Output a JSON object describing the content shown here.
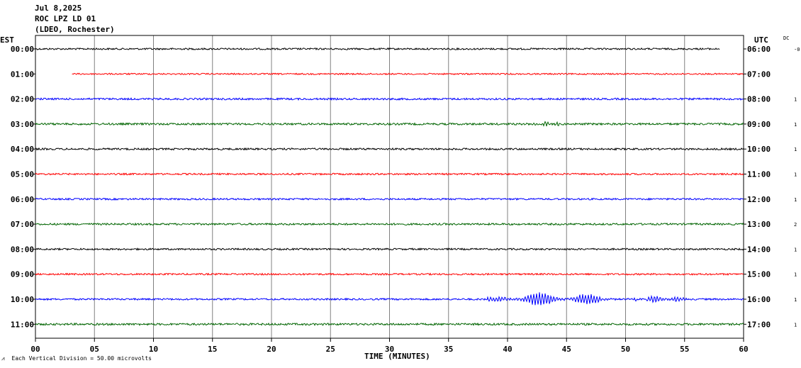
{
  "header": {
    "date": "Jul 8,2025",
    "station": "ROC LPZ LD 01",
    "network": "(LDEO, Rochester)"
  },
  "axis": {
    "left_title": "EST",
    "right_title": "UTC",
    "dc_title": "DC",
    "x_title": "TIME (MINUTES)",
    "footer_note": "Each Vertical Division =   50.00 microvolts"
  },
  "chart_data": {
    "type": "line",
    "title": "",
    "xlabel": "TIME (MINUTES)",
    "ylabel": "",
    "xlim": [
      0,
      60
    ],
    "x_ticks": [
      "00",
      "05",
      "10",
      "15",
      "20",
      "25",
      "30",
      "35",
      "40",
      "45",
      "50",
      "55",
      "60"
    ],
    "grid": true,
    "traces": [
      {
        "est": "00:00",
        "utc": "06:00",
        "dc": "-0",
        "color": "#000000",
        "start_min": 0,
        "end_min": 58,
        "amplitude": 1.2,
        "events": []
      },
      {
        "est": "01:00",
        "utc": "07:00",
        "dc": "",
        "color": "#ff0000",
        "start_min": 3.1,
        "end_min": 60,
        "amplitude": 1.0,
        "events": []
      },
      {
        "est": "02:00",
        "utc": "08:00",
        "dc": "1",
        "color": "#0000ff",
        "start_min": 0,
        "end_min": 60,
        "amplitude": 1.3,
        "events": []
      },
      {
        "est": "03:00",
        "utc": "09:00",
        "dc": "1",
        "color": "#006400",
        "start_min": 0,
        "end_min": 60,
        "amplitude": 1.4,
        "events": [
          {
            "start_min": 42,
            "end_min": 45,
            "amplitude": 3
          }
        ]
      },
      {
        "est": "04:00",
        "utc": "10:00",
        "dc": "1",
        "color": "#000000",
        "start_min": 0,
        "end_min": 60,
        "amplitude": 1.3,
        "events": []
      },
      {
        "est": "05:00",
        "utc": "11:00",
        "dc": "1",
        "color": "#ff0000",
        "start_min": 0,
        "end_min": 60,
        "amplitude": 1.2,
        "events": []
      },
      {
        "est": "06:00",
        "utc": "12:00",
        "dc": "1",
        "color": "#0000ff",
        "start_min": 0,
        "end_min": 60,
        "amplitude": 1.2,
        "events": []
      },
      {
        "est": "07:00",
        "utc": "13:00",
        "dc": "2",
        "color": "#006400",
        "start_min": 0,
        "end_min": 60,
        "amplitude": 1.3,
        "events": []
      },
      {
        "est": "08:00",
        "utc": "14:00",
        "dc": "1",
        "color": "#000000",
        "start_min": 0,
        "end_min": 60,
        "amplitude": 1.2,
        "events": []
      },
      {
        "est": "09:00",
        "utc": "15:00",
        "dc": "1",
        "color": "#ff0000",
        "start_min": 0,
        "end_min": 60,
        "amplitude": 1.2,
        "events": []
      },
      {
        "est": "10:00",
        "utc": "16:00",
        "dc": "1",
        "color": "#0000ff",
        "start_min": 0,
        "end_min": 60,
        "amplitude": 1.2,
        "events": [
          {
            "start_min": 37.5,
            "end_min": 50,
            "amplitude": 9
          },
          {
            "start_min": 50,
            "end_min": 56,
            "amplitude": 4.5
          }
        ]
      },
      {
        "est": "11:00",
        "utc": "17:00",
        "dc": "1",
        "color": "#006400",
        "start_min": 0,
        "end_min": 60,
        "amplitude": 1.4,
        "events": []
      }
    ]
  }
}
